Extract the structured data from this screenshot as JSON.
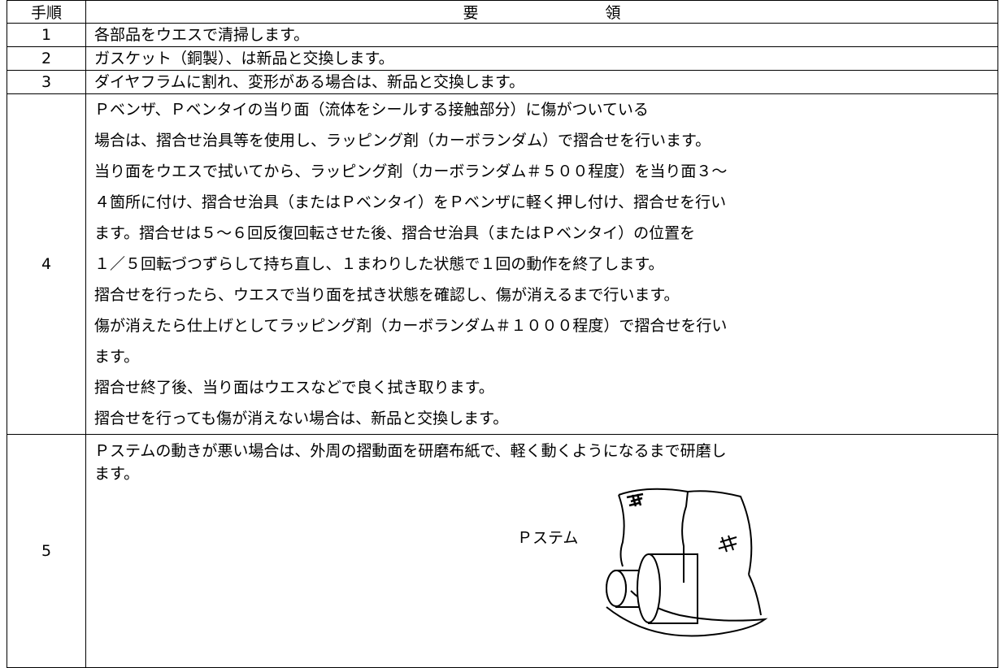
{
  "table": {
    "header": [
      "手順",
      "要 領"
    ],
    "rows": [
      {
        "step": "1",
        "lines": [
          "各部品をウエスで清掃します。"
        ]
      },
      {
        "step": "2",
        "lines": [
          "ガスケット（銅製）、は新品と交換します。"
        ]
      },
      {
        "step": "3",
        "lines": [
          "ダイヤフラムに割れ、変形がある場合は、新品と交換します。"
        ]
      },
      {
        "step": "4",
        "lines": [
          "Ｐベンザ、Ｐベンタイの当り面（流体をシールする接触部分）に傷がついている",
          "場合は、摺合せ治具等を使用し、ラッピング剤（カーボランダム）で摺合せを行います。",
          "当り面をウエスで拭いてから、ラッピング剤（カーボランダム＃５００程度）を当り面３～",
          "４箇所に付け、摺合せ治具（またはＰベンタイ）をＰベンザに軽く押し付け、摺合せを行い",
          "ます。摺合せは５～６回反復回転させた後、摺合せ治具（またはＰベンタイ）の位置を",
          "１／５回転づつずらして持ち直し、１まわりした状態で１回の動作を終了します。",
          "摺合せを行ったら、ウエスで当り面を拭き状態を確認し、傷が消えるまで行います。",
          "傷が消えたら仕上げとしてラッピング剤（カーボランダム＃１０００程度）で摺合せを行い",
          "ます。",
          "摺合せ終了後、当り面はウエスなどで良く拭き取ります。",
          "摺合せを行っても傷が消えない場合は、新品と交換します。"
        ]
      },
      {
        "step": "5",
        "lines": [
          "Ｐステムの動きが悪い場合は、外周の摺動面を研磨布紙で、軽く動くようになるまで研磨し",
          "ます。"
        ],
        "figure_label": "Ｐステム"
      }
    ]
  }
}
